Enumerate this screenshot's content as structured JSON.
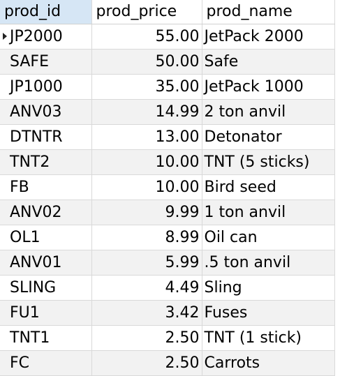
{
  "columns": {
    "prod_id": "prod_id",
    "prod_price": "prod_price",
    "prod_name": "prod_name"
  },
  "rows": [
    {
      "prod_id": "JP2000",
      "prod_price": "55.00",
      "prod_name": "JetPack 2000"
    },
    {
      "prod_id": "SAFE",
      "prod_price": "50.00",
      "prod_name": "Safe"
    },
    {
      "prod_id": "JP1000",
      "prod_price": "35.00",
      "prod_name": "JetPack 1000"
    },
    {
      "prod_id": "ANV03",
      "prod_price": "14.99",
      "prod_name": "2 ton anvil"
    },
    {
      "prod_id": "DTNTR",
      "prod_price": "13.00",
      "prod_name": "Detonator"
    },
    {
      "prod_id": "TNT2",
      "prod_price": "10.00",
      "prod_name": "TNT (5 sticks)"
    },
    {
      "prod_id": "FB",
      "prod_price": "10.00",
      "prod_name": "Bird seed"
    },
    {
      "prod_id": "ANV02",
      "prod_price": "9.99",
      "prod_name": "1 ton anvil"
    },
    {
      "prod_id": "OL1",
      "prod_price": "8.99",
      "prod_name": "Oil can"
    },
    {
      "prod_id": "ANV01",
      "prod_price": "5.99",
      "prod_name": ".5 ton anvil"
    },
    {
      "prod_id": "SLING",
      "prod_price": "4.49",
      "prod_name": "Sling"
    },
    {
      "prod_id": "FU1",
      "prod_price": "3.42",
      "prod_name": "Fuses"
    },
    {
      "prod_id": "TNT1",
      "prod_price": "2.50",
      "prod_name": "TNT (1 stick)"
    },
    {
      "prod_id": "FC",
      "prod_price": "2.50",
      "prod_name": "Carrots"
    }
  ],
  "colors": {
    "header_active_bg": "#d6e6f5",
    "stripe_bg": "#f2f2f2",
    "grid_line": "#d9d9d9"
  },
  "icons": {
    "current_row_marker": "row-pointer-icon"
  }
}
